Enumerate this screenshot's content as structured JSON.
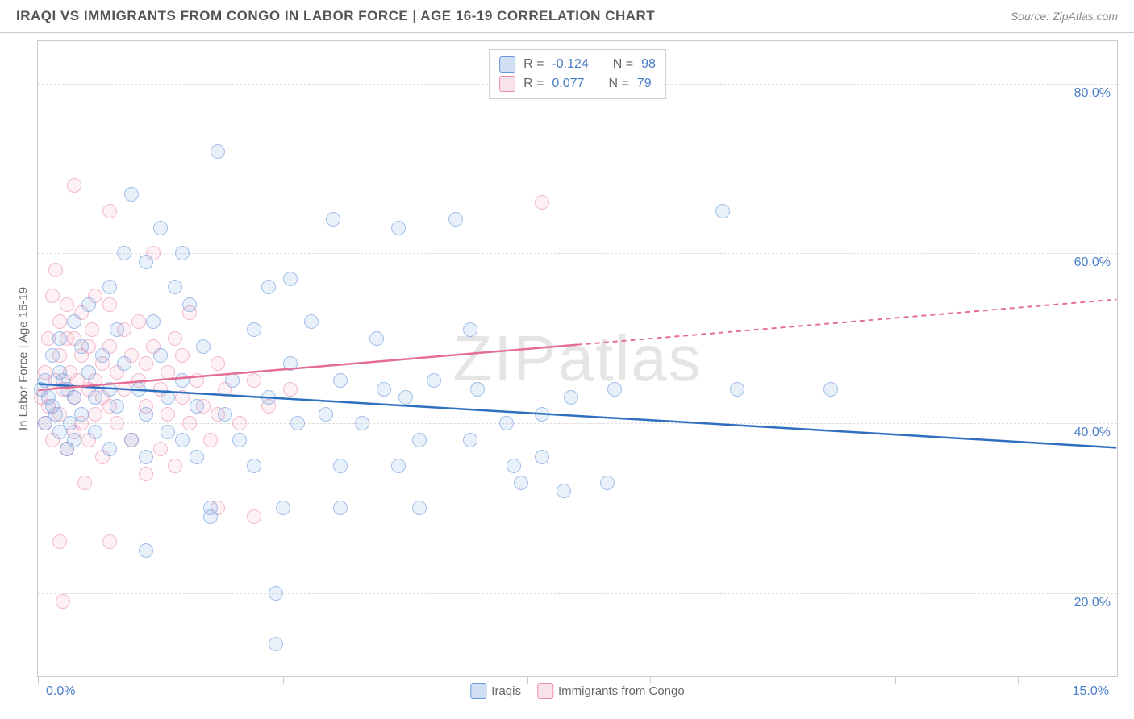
{
  "header": {
    "title": "IRAQI VS IMMIGRANTS FROM CONGO IN LABOR FORCE | AGE 16-19 CORRELATION CHART",
    "source": "Source: ZipAtlas.com"
  },
  "watermark": "ZIPatlas",
  "chart": {
    "type": "scatter",
    "y_axis_title": "In Labor Force | Age 16-19",
    "xlim": [
      0,
      15
    ],
    "ylim": [
      10,
      85
    ],
    "x_labels": {
      "min": "0.0%",
      "max": "15.0%"
    },
    "y_ticks": [
      {
        "value": 20,
        "label": "20.0%"
      },
      {
        "value": 40,
        "label": "40.0%"
      },
      {
        "value": 60,
        "label": "60.0%"
      },
      {
        "value": 80,
        "label": "80.0%"
      }
    ],
    "x_tick_positions": [
      0,
      1.7,
      3.4,
      5.1,
      6.8,
      8.5,
      10.2,
      11.9,
      13.6,
      15
    ],
    "grid_color": "#dddddd",
    "background_color": "#ffffff",
    "colors": {
      "blue_fill": "rgba(100,150,220,0.25)",
      "blue_stroke": "#6496dc",
      "pink_fill": "rgba(235,140,170,0.2)",
      "pink_stroke": "#eb8caa",
      "regression_blue": "#2f6fc0",
      "regression_pink": "#e56e95",
      "axis_text": "#4a7ec7"
    },
    "stats_legend": {
      "rows": [
        {
          "swatch": "blue",
          "r_label": "R =",
          "r_value": "-0.124",
          "n_label": "N =",
          "n_value": "98"
        },
        {
          "swatch": "pink",
          "r_label": "R =",
          "r_value": "0.077",
          "n_label": "N =",
          "n_value": "79"
        }
      ]
    },
    "series_legend": {
      "items": [
        {
          "swatch": "blue",
          "label": "Iraqis"
        },
        {
          "swatch": "pink",
          "label": "Immigrants from Congo"
        }
      ]
    },
    "regression_lines": [
      {
        "series": "blue",
        "x1": 0,
        "y1": 44.5,
        "x2": 15,
        "y2": 37.0,
        "solid_until": 15
      },
      {
        "series": "pink",
        "x1": 0,
        "y1": 43.8,
        "x2": 15,
        "y2": 54.5,
        "solid_until": 7.5
      }
    ],
    "scatter_blue": [
      {
        "x": 0.05,
        "y": 44
      },
      {
        "x": 0.1,
        "y": 40
      },
      {
        "x": 0.1,
        "y": 45
      },
      {
        "x": 0.2,
        "y": 48
      },
      {
        "x": 0.2,
        "y": 42
      },
      {
        "x": 0.3,
        "y": 46
      },
      {
        "x": 0.3,
        "y": 39
      },
      {
        "x": 0.3,
        "y": 50
      },
      {
        "x": 0.4,
        "y": 44
      },
      {
        "x": 0.4,
        "y": 37
      },
      {
        "x": 0.5,
        "y": 52
      },
      {
        "x": 0.5,
        "y": 43
      },
      {
        "x": 0.5,
        "y": 38
      },
      {
        "x": 0.6,
        "y": 49
      },
      {
        "x": 0.6,
        "y": 41
      },
      {
        "x": 0.7,
        "y": 46
      },
      {
        "x": 0.7,
        "y": 54
      },
      {
        "x": 0.8,
        "y": 43
      },
      {
        "x": 0.8,
        "y": 39
      },
      {
        "x": 0.9,
        "y": 48
      },
      {
        "x": 1.0,
        "y": 56
      },
      {
        "x": 1.0,
        "y": 44
      },
      {
        "x": 1.0,
        "y": 37
      },
      {
        "x": 1.1,
        "y": 51
      },
      {
        "x": 1.1,
        "y": 42
      },
      {
        "x": 1.2,
        "y": 60
      },
      {
        "x": 1.2,
        "y": 47
      },
      {
        "x": 1.3,
        "y": 67
      },
      {
        "x": 1.3,
        "y": 38
      },
      {
        "x": 1.4,
        "y": 44
      },
      {
        "x": 1.5,
        "y": 59
      },
      {
        "x": 1.5,
        "y": 41
      },
      {
        "x": 1.5,
        "y": 36
      },
      {
        "x": 1.5,
        "y": 25
      },
      {
        "x": 1.6,
        "y": 52
      },
      {
        "x": 1.7,
        "y": 48
      },
      {
        "x": 1.7,
        "y": 63
      },
      {
        "x": 1.8,
        "y": 43
      },
      {
        "x": 1.8,
        "y": 39
      },
      {
        "x": 1.9,
        "y": 56
      },
      {
        "x": 2.0,
        "y": 60
      },
      {
        "x": 2.0,
        "y": 45
      },
      {
        "x": 2.0,
        "y": 38
      },
      {
        "x": 2.1,
        "y": 54
      },
      {
        "x": 2.2,
        "y": 42
      },
      {
        "x": 2.2,
        "y": 36
      },
      {
        "x": 2.3,
        "y": 49
      },
      {
        "x": 2.4,
        "y": 30
      },
      {
        "x": 2.4,
        "y": 29
      },
      {
        "x": 2.5,
        "y": 72
      },
      {
        "x": 2.6,
        "y": 41
      },
      {
        "x": 2.7,
        "y": 45
      },
      {
        "x": 2.8,
        "y": 38
      },
      {
        "x": 3.0,
        "y": 51
      },
      {
        "x": 3.0,
        "y": 35
      },
      {
        "x": 3.2,
        "y": 56
      },
      {
        "x": 3.2,
        "y": 43
      },
      {
        "x": 3.3,
        "y": 20
      },
      {
        "x": 3.3,
        "y": 14
      },
      {
        "x": 3.4,
        "y": 30
      },
      {
        "x": 3.5,
        "y": 57
      },
      {
        "x": 3.5,
        "y": 47
      },
      {
        "x": 3.6,
        "y": 40
      },
      {
        "x": 3.8,
        "y": 52
      },
      {
        "x": 4.0,
        "y": 41
      },
      {
        "x": 4.1,
        "y": 64
      },
      {
        "x": 4.2,
        "y": 45
      },
      {
        "x": 4.2,
        "y": 30
      },
      {
        "x": 4.2,
        "y": 35
      },
      {
        "x": 4.5,
        "y": 40
      },
      {
        "x": 4.7,
        "y": 50
      },
      {
        "x": 4.8,
        "y": 44
      },
      {
        "x": 5.0,
        "y": 63
      },
      {
        "x": 5.0,
        "y": 35
      },
      {
        "x": 5.1,
        "y": 43
      },
      {
        "x": 5.3,
        "y": 38
      },
      {
        "x": 5.3,
        "y": 30
      },
      {
        "x": 5.5,
        "y": 45
      },
      {
        "x": 5.8,
        "y": 64
      },
      {
        "x": 6.0,
        "y": 51
      },
      {
        "x": 6.0,
        "y": 38
      },
      {
        "x": 6.1,
        "y": 44
      },
      {
        "x": 6.5,
        "y": 40
      },
      {
        "x": 6.6,
        "y": 35
      },
      {
        "x": 6.7,
        "y": 33
      },
      {
        "x": 7.0,
        "y": 41
      },
      {
        "x": 7.0,
        "y": 36
      },
      {
        "x": 7.3,
        "y": 32
      },
      {
        "x": 7.4,
        "y": 43
      },
      {
        "x": 7.9,
        "y": 33
      },
      {
        "x": 8.0,
        "y": 44
      },
      {
        "x": 9.5,
        "y": 65
      },
      {
        "x": 9.7,
        "y": 44
      },
      {
        "x": 11.0,
        "y": 44
      },
      {
        "x": 0.15,
        "y": 43
      },
      {
        "x": 0.25,
        "y": 41
      },
      {
        "x": 0.35,
        "y": 45
      },
      {
        "x": 0.45,
        "y": 40
      }
    ],
    "scatter_pink": [
      {
        "x": 0.05,
        "y": 43
      },
      {
        "x": 0.1,
        "y": 46
      },
      {
        "x": 0.1,
        "y": 40
      },
      {
        "x": 0.15,
        "y": 50
      },
      {
        "x": 0.15,
        "y": 42
      },
      {
        "x": 0.2,
        "y": 55
      },
      {
        "x": 0.2,
        "y": 38
      },
      {
        "x": 0.25,
        "y": 45
      },
      {
        "x": 0.25,
        "y": 58
      },
      {
        "x": 0.3,
        "y": 52
      },
      {
        "x": 0.3,
        "y": 41
      },
      {
        "x": 0.3,
        "y": 48
      },
      {
        "x": 0.35,
        "y": 44
      },
      {
        "x": 0.4,
        "y": 50
      },
      {
        "x": 0.4,
        "y": 37
      },
      {
        "x": 0.4,
        "y": 54
      },
      {
        "x": 0.3,
        "y": 26
      },
      {
        "x": 0.35,
        "y": 19
      },
      {
        "x": 0.45,
        "y": 46
      },
      {
        "x": 0.5,
        "y": 43
      },
      {
        "x": 0.5,
        "y": 39
      },
      {
        "x": 0.5,
        "y": 50
      },
      {
        "x": 0.5,
        "y": 68
      },
      {
        "x": 0.55,
        "y": 45
      },
      {
        "x": 0.6,
        "y": 48
      },
      {
        "x": 0.6,
        "y": 40
      },
      {
        "x": 0.6,
        "y": 53
      },
      {
        "x": 0.65,
        "y": 33
      },
      {
        "x": 0.7,
        "y": 44
      },
      {
        "x": 0.7,
        "y": 49
      },
      {
        "x": 0.7,
        "y": 38
      },
      {
        "x": 0.75,
        "y": 51
      },
      {
        "x": 0.8,
        "y": 45
      },
      {
        "x": 0.8,
        "y": 41
      },
      {
        "x": 0.8,
        "y": 55
      },
      {
        "x": 0.9,
        "y": 47
      },
      {
        "x": 0.9,
        "y": 43
      },
      {
        "x": 0.9,
        "y": 36
      },
      {
        "x": 1.0,
        "y": 49
      },
      {
        "x": 1.0,
        "y": 42
      },
      {
        "x": 1.0,
        "y": 54
      },
      {
        "x": 1.0,
        "y": 65
      },
      {
        "x": 1.0,
        "y": 26
      },
      {
        "x": 1.1,
        "y": 46
      },
      {
        "x": 1.1,
        "y": 40
      },
      {
        "x": 1.2,
        "y": 51
      },
      {
        "x": 1.2,
        "y": 44
      },
      {
        "x": 1.3,
        "y": 48
      },
      {
        "x": 1.3,
        "y": 38
      },
      {
        "x": 1.4,
        "y": 45
      },
      {
        "x": 1.4,
        "y": 52
      },
      {
        "x": 1.5,
        "y": 42
      },
      {
        "x": 1.5,
        "y": 47
      },
      {
        "x": 1.5,
        "y": 34
      },
      {
        "x": 1.6,
        "y": 49
      },
      {
        "x": 1.6,
        "y": 60
      },
      {
        "x": 1.7,
        "y": 44
      },
      {
        "x": 1.7,
        "y": 37
      },
      {
        "x": 1.8,
        "y": 46
      },
      {
        "x": 1.8,
        "y": 41
      },
      {
        "x": 1.9,
        "y": 50
      },
      {
        "x": 1.9,
        "y": 35
      },
      {
        "x": 2.0,
        "y": 43
      },
      {
        "x": 2.0,
        "y": 48
      },
      {
        "x": 2.1,
        "y": 40
      },
      {
        "x": 2.1,
        "y": 53
      },
      {
        "x": 2.2,
        "y": 45
      },
      {
        "x": 2.3,
        "y": 42
      },
      {
        "x": 2.4,
        "y": 38
      },
      {
        "x": 2.5,
        "y": 47
      },
      {
        "x": 2.5,
        "y": 41
      },
      {
        "x": 2.5,
        "y": 30
      },
      {
        "x": 2.6,
        "y": 44
      },
      {
        "x": 2.8,
        "y": 40
      },
      {
        "x": 3.0,
        "y": 45
      },
      {
        "x": 3.0,
        "y": 29
      },
      {
        "x": 3.2,
        "y": 42
      },
      {
        "x": 3.5,
        "y": 44
      },
      {
        "x": 7.0,
        "y": 66
      }
    ]
  }
}
